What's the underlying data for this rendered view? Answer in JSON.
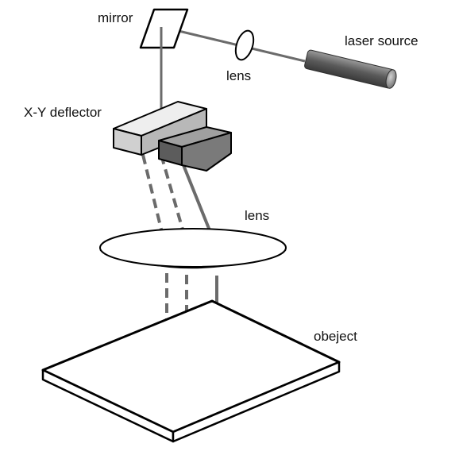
{
  "labels": {
    "mirror": "mirror",
    "lens_top": "lens",
    "laser_source": "laser source",
    "xy_deflector": "X-Y deflector",
    "lens_main": "lens",
    "object": "obeject"
  },
  "colors": {
    "beam": "#6b6b6b",
    "outline": "#000000",
    "deflector_light": "#d6d6d6",
    "deflector_dark": "#777777",
    "laser_body": "#6a6a6a",
    "background": "#ffffff"
  }
}
